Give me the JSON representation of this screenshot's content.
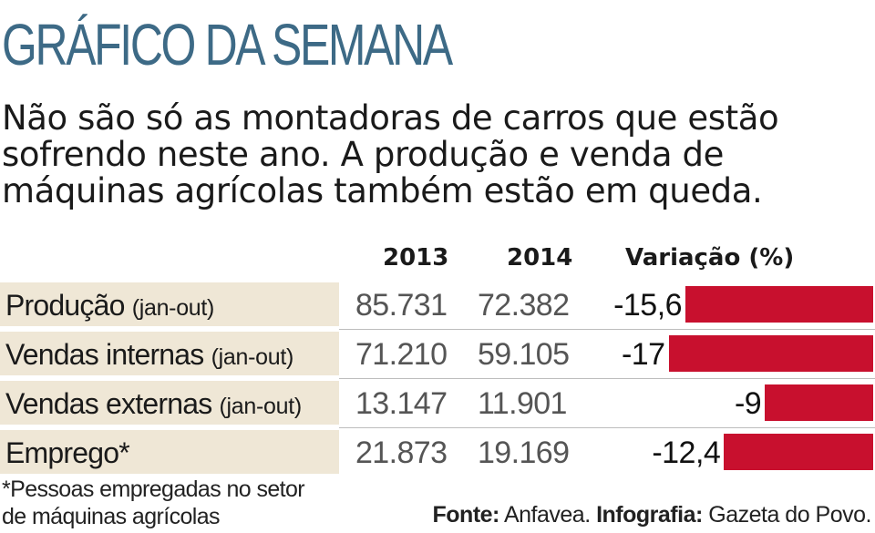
{
  "header": {
    "title": "GRÁFICO DA SEMANA",
    "subtitle_lines": [
      "Não são só as montadoras de carros que estão",
      "sofrendo neste ano. A produção e venda de",
      "máquinas agrícolas também estão em queda."
    ]
  },
  "columns": {
    "col_2013": "2013",
    "col_2014": "2014",
    "col_variation": "Variação (%)"
  },
  "rows": [
    {
      "name": "Produção",
      "period": "(jan-out)",
      "v2013": "85.731",
      "v2014": "72.382",
      "variation": "-15,6"
    },
    {
      "name": "Vendas internas",
      "period": "(jan-out)",
      "v2013": "71.210",
      "v2014": "59.105",
      "variation": "-17"
    },
    {
      "name": "Vendas externas ",
      "period": "(jan-out)",
      "v2013": "13.147",
      "v2014": "11.901",
      "variation": "-9"
    },
    {
      "name": "Emprego*",
      "period": "",
      "v2013": "21.873",
      "v2014": "19.169",
      "variation": "-12,4"
    }
  ],
  "footnote_lines": [
    "*Pessoas empregadas no setor",
    "de máquinas agrícolas"
  ],
  "source": {
    "source_label": "Fonte:",
    "source_value": " Anfavea. ",
    "credit_label": "Infografia:",
    "credit_value": " Gazeta do Povo."
  },
  "colors": {
    "title": "#3d6a86",
    "bar": "#c8102e",
    "label_background": "#efe7d6"
  },
  "chart_data": {
    "type": "table",
    "title": "GRÁFICO DA SEMANA",
    "columns": [
      "2013",
      "2014",
      "Variação (%)"
    ],
    "categories": [
      "Produção (jan-out)",
      "Vendas internas (jan-out)",
      "Vendas externas (jan-out)",
      "Emprego*"
    ],
    "series": [
      {
        "name": "2013",
        "values": [
          85731,
          71210,
          13147,
          21873
        ]
      },
      {
        "name": "2014",
        "values": [
          72382,
          59105,
          11901,
          19169
        ]
      },
      {
        "name": "Variação (%)",
        "values": [
          -15.6,
          -17,
          -9,
          -12.4
        ]
      }
    ]
  }
}
